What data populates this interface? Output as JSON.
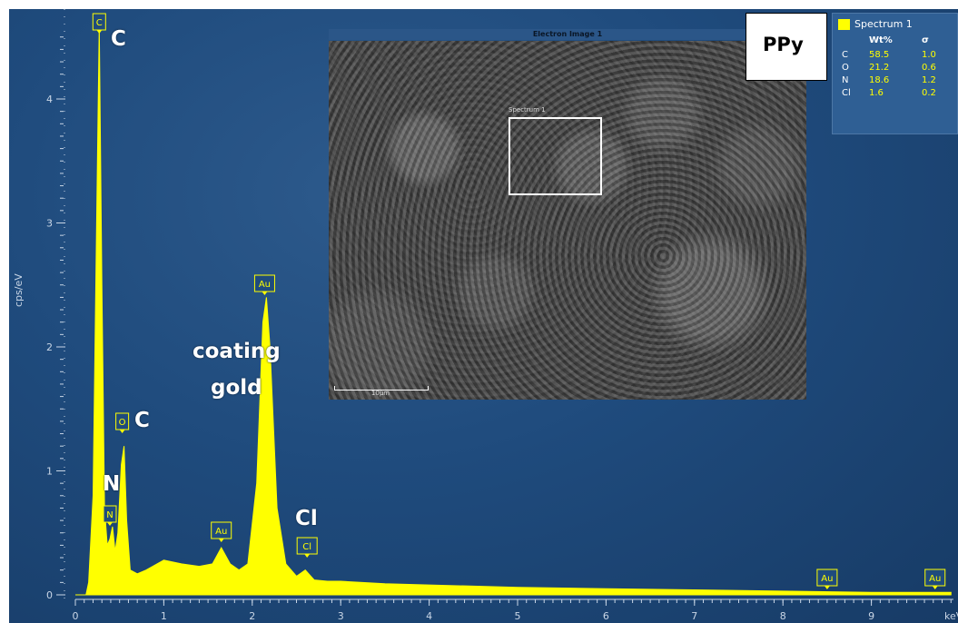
{
  "chart_data": {
    "type": "line",
    "title": "",
    "xlabel": "keV",
    "ylabel": "cps/eV",
    "xlim": [
      0,
      10
    ],
    "ylim": [
      0,
      4.5
    ],
    "x_ticks": [
      "0",
      "1",
      "2",
      "3",
      "4",
      "5",
      "6",
      "7",
      "8",
      "9"
    ],
    "y_ticks": [
      "0",
      "1",
      "2",
      "3",
      "4"
    ],
    "series": [
      {
        "name": "Spectrum 1",
        "color": "#ffff00",
        "x": [
          0.0,
          0.12,
          0.15,
          0.2,
          0.24,
          0.27,
          0.3,
          0.33,
          0.36,
          0.39,
          0.42,
          0.45,
          0.48,
          0.52,
          0.55,
          0.58,
          0.62,
          0.7,
          0.8,
          0.9,
          1.0,
          1.2,
          1.4,
          1.55,
          1.65,
          1.75,
          1.85,
          1.95,
          2.05,
          2.12,
          2.16,
          2.2,
          2.28,
          2.38,
          2.5,
          2.6,
          2.7,
          2.85,
          3.0,
          3.5,
          4.0,
          4.5,
          5.0,
          6.0,
          7.0,
          8.0,
          9.0,
          9.9
        ],
        "y": [
          0,
          0,
          0.1,
          0.8,
          3.0,
          4.6,
          2.5,
          0.7,
          0.4,
          0.45,
          0.55,
          0.35,
          0.5,
          1.05,
          1.2,
          0.6,
          0.2,
          0.17,
          0.2,
          0.24,
          0.28,
          0.25,
          0.23,
          0.25,
          0.38,
          0.25,
          0.2,
          0.25,
          0.9,
          2.2,
          2.4,
          2.0,
          0.7,
          0.25,
          0.15,
          0.2,
          0.12,
          0.11,
          0.11,
          0.09,
          0.08,
          0.07,
          0.06,
          0.05,
          0.04,
          0.03,
          0.02,
          0.02
        ]
      }
    ],
    "peak_labels": [
      {
        "label": "C",
        "x": 0.27
      },
      {
        "label": "O",
        "x": 0.53
      },
      {
        "label": "N",
        "x": 0.39
      },
      {
        "label": "Au",
        "x": 1.65
      },
      {
        "label": "Au",
        "x": 2.14
      },
      {
        "label": "Cl",
        "x": 2.62
      },
      {
        "label": "Au",
        "x": 8.5
      },
      {
        "label": "Au",
        "x": 9.72
      }
    ],
    "annotations": [
      "C",
      "C",
      "N",
      "coating gold",
      "Cl"
    ],
    "grid": false,
    "legend_position": "top-right"
  },
  "annotations": {
    "c_top": "C",
    "c_o": "C",
    "n": "N",
    "coating_line1": "coating",
    "coating_line2": "gold",
    "cl": "Cl"
  },
  "inset": {
    "title": "Electron Image 1",
    "roi_label": "Spectrum 1",
    "scale_label": "10μm"
  },
  "ppy_label": "PPy",
  "legend": {
    "name": "Spectrum 1",
    "col_wt": "Wt%",
    "col_sigma": "σ",
    "rows": [
      {
        "el": "C",
        "wt": "58.5",
        "sigma": "1.0"
      },
      {
        "el": "O",
        "wt": "21.2",
        "sigma": "0.6"
      },
      {
        "el": "N",
        "wt": "18.6",
        "sigma": "1.2"
      },
      {
        "el": "Cl",
        "wt": "1.6",
        "sigma": "0.2"
      }
    ]
  }
}
